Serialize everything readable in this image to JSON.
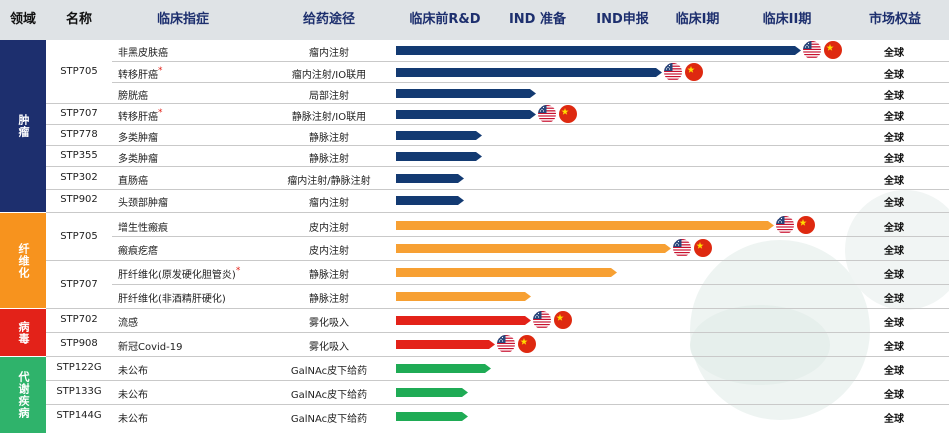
{
  "header": {
    "domain": "领域",
    "name": "名称",
    "indication": "临床指症",
    "route": "给药途径",
    "preclinical": "临床前R&D",
    "ind": "IND 准备",
    "ind_filing": "IND申报",
    "phase1": "临床I期",
    "phase2": "临床II期",
    "market": "市场权益"
  },
  "stage_scale": [
    "临床前R&D",
    "IND 准备",
    "IND申报",
    "临床I期",
    "临床II期"
  ],
  "domains": [
    {
      "label": "肿瘤",
      "color": "#1d2f6e"
    },
    {
      "label": "纤维化",
      "color": "#f7931e"
    },
    {
      "label": "病毒",
      "color": "#e32219"
    },
    {
      "label": "代谢疾病",
      "color": "#2fb36b"
    }
  ],
  "colors": {
    "oncology": "#133a72",
    "fibrosis": "#f7a033",
    "virus": "#e32219",
    "metabolic": "#1fab55"
  },
  "rows": [
    {
      "name": "STP705",
      "indication": "非黑皮肤癌",
      "star": false,
      "route": "瘤内注射",
      "market": "全球",
      "progress": 0.9,
      "flags": true
    },
    {
      "name": "STP705",
      "indication": "转移肝癌",
      "star": true,
      "route": "瘤内注射/IO联用",
      "market": "全球",
      "progress": 0.59,
      "flags": true
    },
    {
      "name": "STP705",
      "indication": "膀胱癌",
      "star": false,
      "route": "局部注射",
      "market": "全球",
      "progress": 0.31,
      "flags": false
    },
    {
      "name": "STP707",
      "indication": "转移肝癌",
      "star": true,
      "route": "静脉注射/IO联用",
      "market": "全球",
      "progress": 0.31,
      "flags": true
    },
    {
      "name": "STP778",
      "indication": "多类肿瘤",
      "star": false,
      "route": "静脉注射",
      "market": "全球",
      "progress": 0.19,
      "flags": false
    },
    {
      "name": "STP355",
      "indication": "多类肿瘤",
      "star": false,
      "route": "静脉注射",
      "market": "全球",
      "progress": 0.19,
      "flags": false
    },
    {
      "name": "STP302",
      "indication": "直肠癌",
      "star": false,
      "route": "瘤内注射/静脉注射",
      "market": "全球",
      "progress": 0.15,
      "flags": false
    },
    {
      "name": "STP902",
      "indication": "头颈部肿瘤",
      "star": false,
      "route": "瘤内注射",
      "market": "全球",
      "progress": 0.15,
      "flags": false
    },
    {
      "name": "STP705",
      "indication": "增生性瘢痕",
      "star": false,
      "route": "皮内注射",
      "market": "全球",
      "progress": 0.84,
      "flags": true
    },
    {
      "name": "STP705",
      "indication": "瘢痕疙瘩",
      "star": false,
      "route": "皮内注射",
      "market": "全球",
      "progress": 0.61,
      "flags": true
    },
    {
      "name": "STP707",
      "indication": "肝纤维化(原发硬化胆管炎)",
      "star": true,
      "route": "静脉注射",
      "market": "全球",
      "progress": 0.49,
      "flags": false
    },
    {
      "name": "STP707",
      "indication": "肝纤维化(非酒精肝硬化)",
      "star": false,
      "route": "静脉注射",
      "market": "全球",
      "progress": 0.3,
      "flags": false
    },
    {
      "name": "STP702",
      "indication": "流感",
      "star": false,
      "route": "雾化吸入",
      "market": "全球",
      "progress": 0.3,
      "flags": true
    },
    {
      "name": "STP908",
      "indication": "新冠Covid-19",
      "star": false,
      "route": "雾化吸入",
      "market": "全球",
      "progress": 0.22,
      "flags": true
    },
    {
      "name": "STP122G",
      "indication": "未公布",
      "star": false,
      "route": "GalNAc皮下给药",
      "market": "全球",
      "progress": 0.21,
      "flags": false
    },
    {
      "name": "STP133G",
      "indication": "未公布",
      "star": false,
      "route": "GalNAc皮下给药",
      "market": "全球",
      "progress": 0.16,
      "flags": false
    },
    {
      "name": "STP144G",
      "indication": "未公布",
      "star": false,
      "route": "GalNAc皮下给药",
      "market": "全球",
      "progress": 0.16,
      "flags": false
    }
  ]
}
